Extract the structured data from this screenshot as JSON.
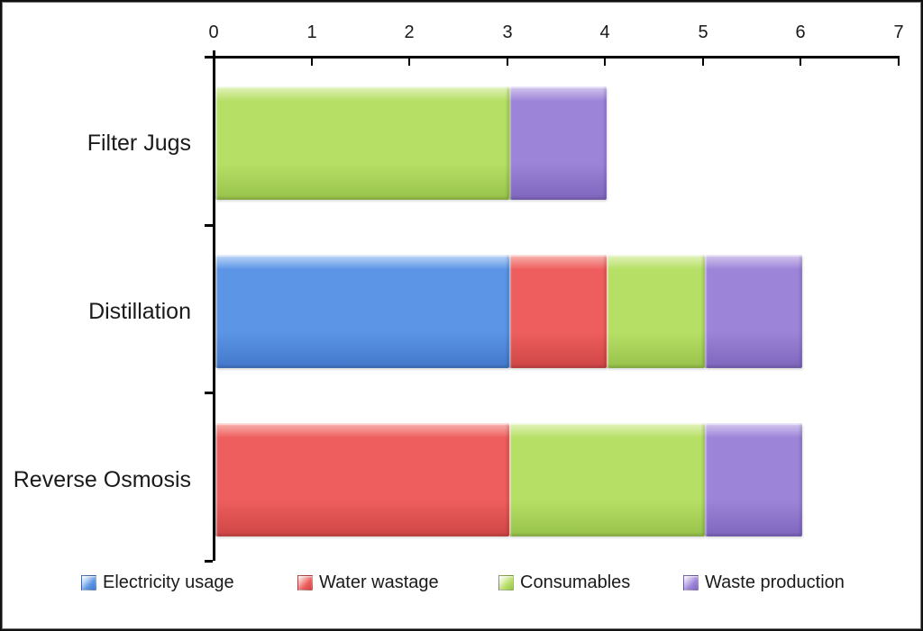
{
  "page": {
    "background": "#ffffff",
    "border_color": "#111111",
    "text_color": "#1a1a1a",
    "axis_color": "#000000"
  },
  "chart_data": {
    "type": "bar",
    "orientation": "horizontal",
    "stacked": true,
    "title": "",
    "xlabel": "",
    "ylabel": "",
    "grid": false,
    "legend_position": "bottom",
    "xlim": [
      0,
      7
    ],
    "x_ticks": [
      0,
      1,
      2,
      3,
      4,
      5,
      6,
      7
    ],
    "x_tick_labels": [
      "0",
      "1",
      "2",
      "3",
      "4",
      "5",
      "6",
      "7"
    ],
    "categories": [
      "Filter Jugs",
      "Distillation",
      "Reverse Osmosis"
    ],
    "series": [
      {
        "name": "Electricity usage",
        "color": "#5C95E6",
        "color_light": "#C3DAF8",
        "color_dark": "#4377C9",
        "values": [
          0,
          3,
          0
        ]
      },
      {
        "name": "Water wastage",
        "color": "#EE5E5E",
        "color_light": "#F9B7B2",
        "color_dark": "#CE4545",
        "values": [
          0,
          1,
          3
        ]
      },
      {
        "name": "Consumables",
        "color": "#B6DF65",
        "color_light": "#E4F4BF",
        "color_dark": "#97C24B",
        "values": [
          3,
          1,
          2
        ]
      },
      {
        "name": "Waste production",
        "color": "#9C84D8",
        "color_light": "#D5C9F0",
        "color_dark": "#7E66BD",
        "values": [
          1,
          1,
          1
        ]
      }
    ],
    "totals_by_category": [
      4,
      6,
      6
    ]
  }
}
